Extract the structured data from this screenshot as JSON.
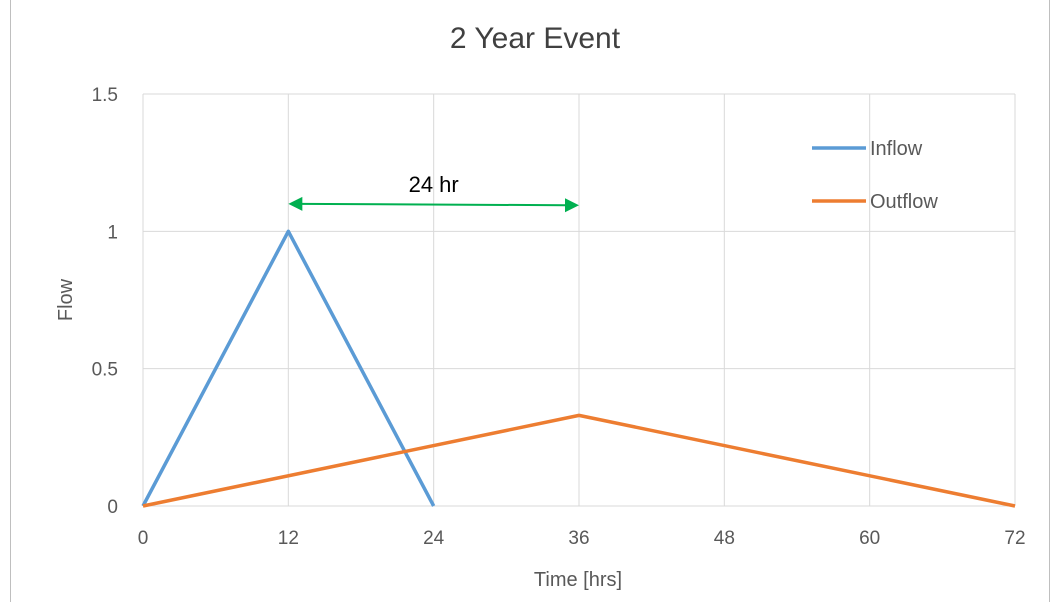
{
  "chart_data": {
    "type": "line",
    "title": "2 Year Event",
    "xlabel": "Time [hrs]",
    "ylabel": "Flow",
    "xlim": [
      0,
      72
    ],
    "ylim": [
      0,
      1.5
    ],
    "x_ticks": [
      "0",
      "12",
      "24",
      "36",
      "48",
      "60",
      "72"
    ],
    "y_ticks": [
      "0",
      "0.5",
      "1",
      "1.5"
    ],
    "grid": true,
    "legend_position": "right",
    "series": [
      {
        "name": "Inflow",
        "color": "#5b9bd5",
        "x": [
          0,
          12,
          24
        ],
        "y": [
          0,
          1,
          0
        ]
      },
      {
        "name": "Outflow",
        "color": "#ed7d31",
        "x": [
          0,
          36,
          72
        ],
        "y": [
          0,
          0.33,
          0
        ]
      }
    ],
    "annotations": [
      {
        "text": "24 hr",
        "type": "double-arrow",
        "color": "#00b050",
        "x_start": 12,
        "x_end": 36,
        "y_start": 1.1,
        "y_end": 1.095
      }
    ]
  }
}
